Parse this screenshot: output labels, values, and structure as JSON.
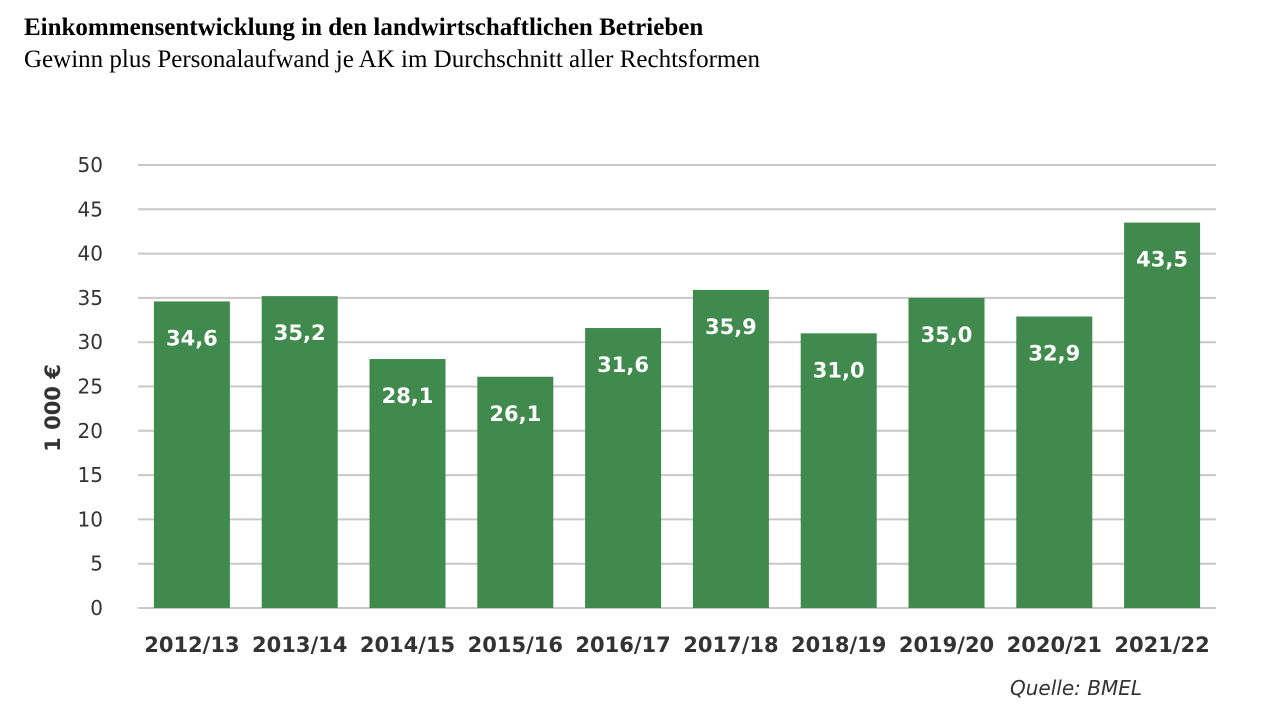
{
  "title": "Einkommensentwicklung in den landwirtschaftlichen Betrieben",
  "subtitle": "Gewinn plus Personalaufwand je AK im Durchschnitt aller Rechtsformen",
  "source": "Quelle: BMEL",
  "colors": {
    "bar": "#3f8a4c",
    "grid": "#c8c8c8"
  },
  "chart_data": {
    "type": "bar",
    "categories": [
      "2012/13",
      "2013/14",
      "2014/15",
      "2015/16",
      "2016/17",
      "2017/18",
      "2018/19",
      "2019/20",
      "2020/21",
      "2021/22"
    ],
    "values": [
      34.6,
      35.2,
      28.1,
      26.1,
      31.6,
      35.9,
      31.0,
      35.0,
      32.9,
      43.5
    ],
    "value_labels": [
      "34,6",
      "35,2",
      "28,1",
      "26,1",
      "31,6",
      "35,9",
      "31,0",
      "35,0",
      "32,9",
      "43,5"
    ],
    "ylabel": "1 000 €",
    "ylim": [
      0,
      50
    ],
    "yticks": [
      0,
      5,
      10,
      15,
      20,
      25,
      30,
      35,
      40,
      45,
      50
    ],
    "grid": true,
    "legend": "none"
  }
}
